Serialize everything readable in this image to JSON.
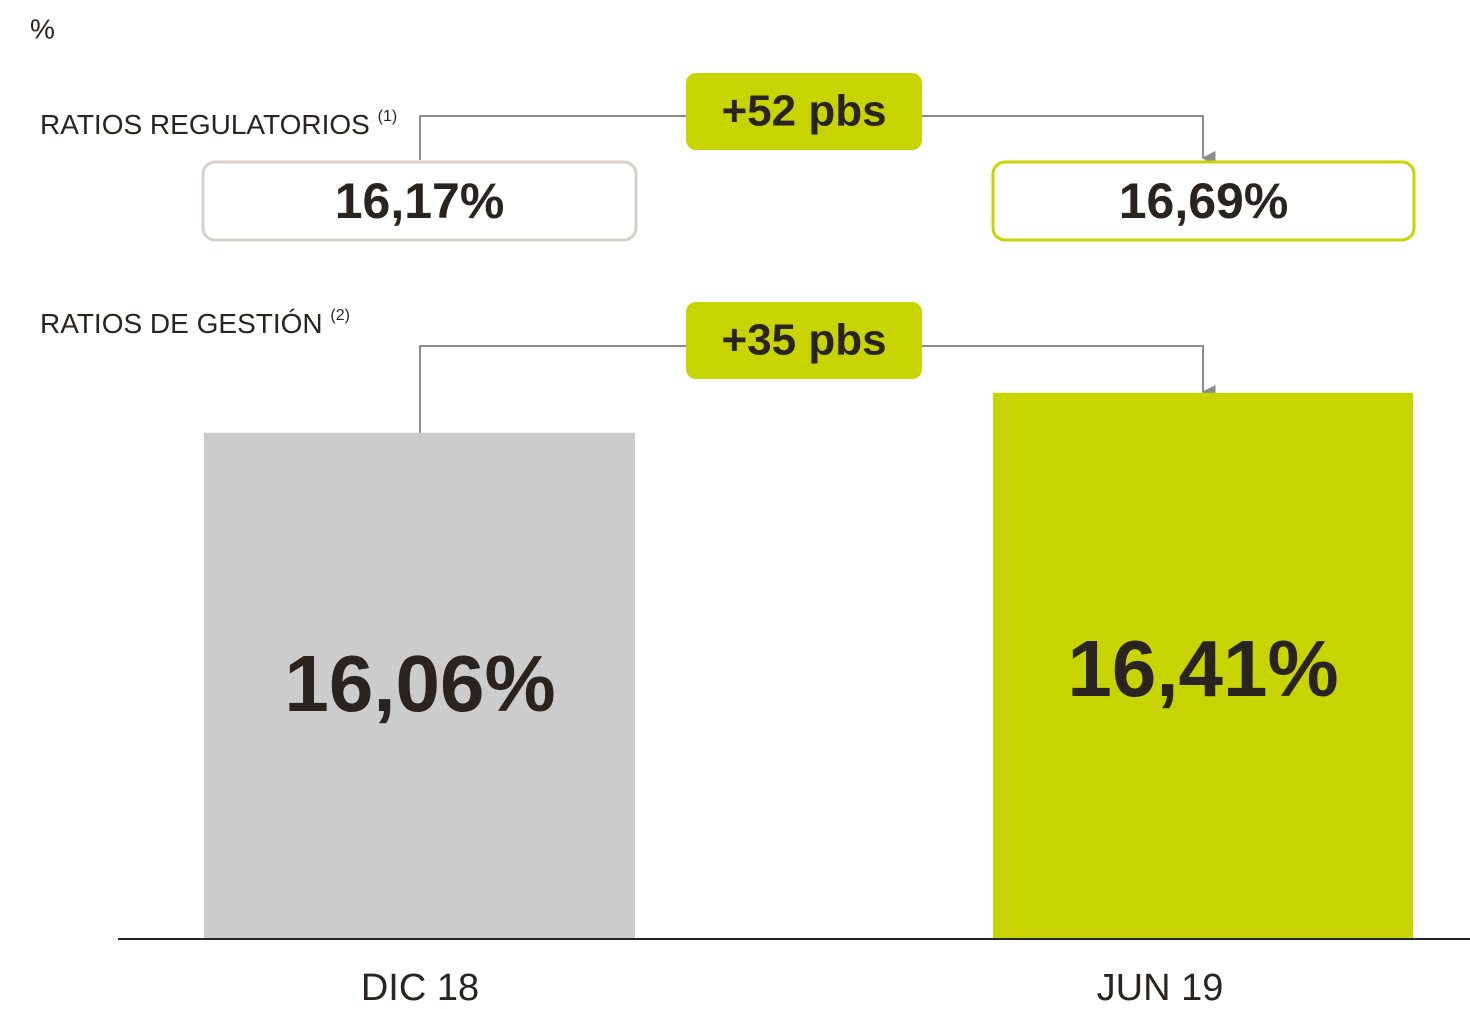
{
  "chart_data": {
    "type": "bar",
    "unit": "%",
    "categories": [
      "DIC 18",
      "JUN 19"
    ],
    "colors": [
      "#cccccc",
      "#c8d400"
    ],
    "ylim": [
      11.64,
      16.5
    ],
    "series": [
      {
        "name": "RATIOS DE GESTIÓN",
        "note": "(2)",
        "values": [
          16.06,
          16.41
        ],
        "value_labels": [
          "16,06%",
          "16,41%"
        ],
        "change": "+35 pbs"
      }
    ],
    "regulatory": {
      "name": "RATIOS REGULATORIOS",
      "note": "(1)",
      "values": [
        16.17,
        16.69
      ],
      "value_labels": [
        "16,17%",
        "16,69%"
      ],
      "box_colors": [
        "#d8cfc9",
        "#c8d400"
      ],
      "change": "+52 pbs"
    },
    "badge_color": "#c8d400"
  }
}
